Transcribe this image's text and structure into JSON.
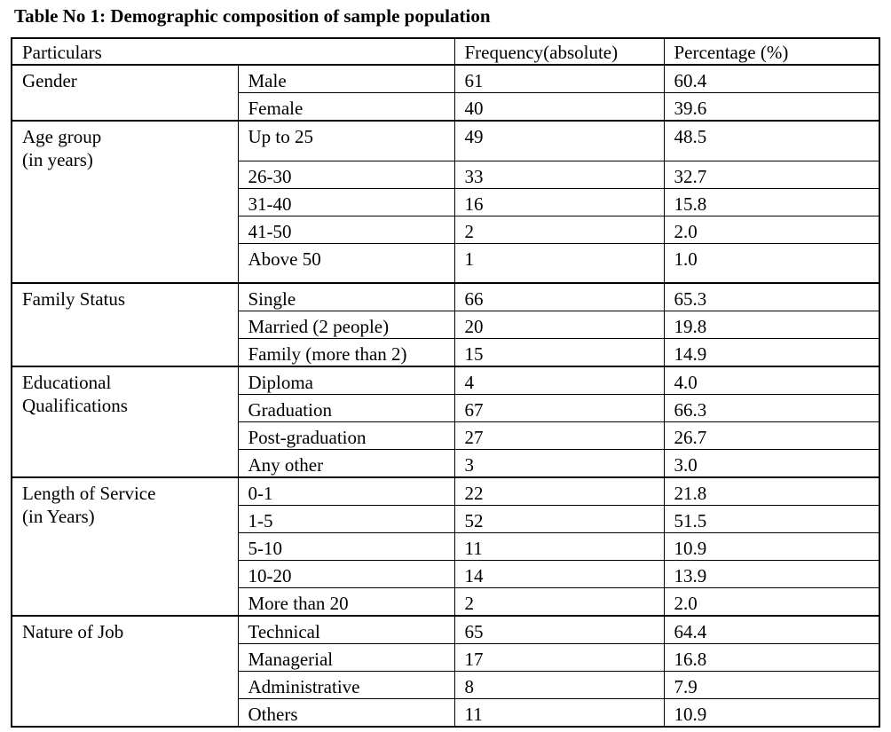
{
  "caption": "Table No 1: Demographic composition of sample population",
  "headers": [
    "Particulars",
    "",
    "Frequency(absolute)",
    "Percentage (%)"
  ],
  "groups": [
    {
      "label": "Gender",
      "rows": [
        [
          "Male",
          "61",
          "60.4"
        ],
        [
          "Female",
          "40",
          "39.6"
        ]
      ]
    },
    {
      "label": "Age group\n(in years)",
      "rows": [
        [
          "Up to 25",
          "49",
          "48.5"
        ],
        [
          "26-30",
          "33",
          "32.7"
        ],
        [
          "31-40",
          "16",
          "15.8"
        ],
        [
          "41-50",
          "2",
          "2.0"
        ],
        [
          "Above 50",
          "1",
          "1.0"
        ]
      ]
    },
    {
      "label": "Family Status",
      "rows": [
        [
          "Single",
          "66",
          "65.3"
        ],
        [
          "Married (2 people)",
          "20",
          "19.8"
        ],
        [
          "Family (more than 2)",
          "15",
          "14.9"
        ]
      ]
    },
    {
      "label": "Educational\nQualifications",
      "rows": [
        [
          "Diploma",
          "4",
          "4.0"
        ],
        [
          "Graduation",
          "67",
          "66.3"
        ],
        [
          "Post-graduation",
          "27",
          "26.7"
        ],
        [
          "Any other",
          "3",
          "3.0"
        ]
      ]
    },
    {
      "label": "Length of Service\n(in Years)",
      "rows": [
        [
          "0-1",
          "22",
          "21.8"
        ],
        [
          "1-5",
          "52",
          "51.5"
        ],
        [
          "5-10",
          "11",
          "10.9"
        ],
        [
          "10-20",
          "14",
          "13.9"
        ],
        [
          "More than 20",
          "2",
          "2.0"
        ]
      ]
    },
    {
      "label": "Nature of Job",
      "rows": [
        [
          "Technical",
          "65",
          "64.4"
        ],
        [
          "Managerial",
          "17",
          "16.8"
        ],
        [
          "Administrative",
          "8",
          "7.9"
        ],
        [
          "Others",
          "11",
          "10.9"
        ]
      ]
    }
  ]
}
